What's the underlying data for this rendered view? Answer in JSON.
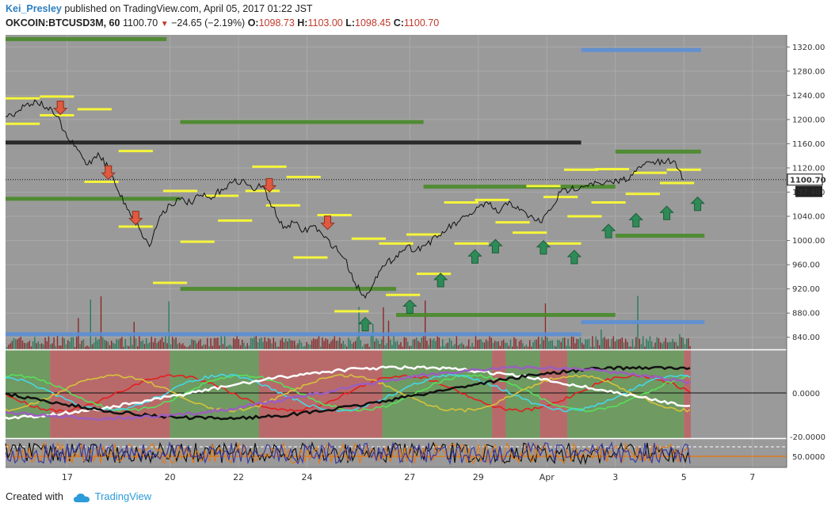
{
  "header": {
    "author": "Kei_Presley",
    "published_text": "published on TradingView.com, April 05, 2017 01:22 JST",
    "symbol": "OKCOIN:BTCUSD3M, 60",
    "last": "1100.70",
    "change": "−24.65 (−2.19%)",
    "o_label": "O:",
    "o_val": "1098.73",
    "h_label": "H:",
    "h_val": "1103.00",
    "l_label": "L:",
    "l_val": "1098.45",
    "c_label": "C:",
    "c_val": "1100.70"
  },
  "footer": {
    "created_with": "Created with",
    "brand": "TradingView"
  },
  "colors": {
    "pane_bg": "#9a9a9a",
    "price_line": "#111111",
    "yellow": "#f5f53a",
    "green_level": "#4a8a2a",
    "blue_level": "#5b8fd6",
    "black_level": "#2a2a2a",
    "up_arrow": "#2e8b57",
    "down_arrow": "#e05a40"
  },
  "chart_data": {
    "type": "line",
    "title": "",
    "price_axis": {
      "ticks": [
        840,
        880,
        920,
        960,
        1000,
        1040,
        1080,
        1120,
        1160,
        1200,
        1240,
        1280,
        1320
      ],
      "labels": [
        "840.00",
        "880.00",
        "920.00",
        "960.00",
        "1000.00",
        "1040.00",
        "1080.00",
        "1120.00",
        "1160.00",
        "1200.00",
        "1240.00",
        "1280.00",
        "1320.00"
      ],
      "range": [
        820,
        1340
      ]
    },
    "current_price": {
      "value": 1100.7,
      "label": "1100.70",
      "countdown": "37:40"
    },
    "x_axis": {
      "labels": [
        "17",
        "20",
        "22",
        "24",
        "27",
        "29",
        "Apr",
        "3",
        "5",
        "7"
      ],
      "positions": [
        17,
        20,
        22,
        24,
        27,
        29,
        31,
        33,
        35,
        37
      ],
      "range": [
        15.2,
        38
      ]
    },
    "price_series": {
      "x": [
        15.2,
        15.5,
        15.8,
        16.1,
        16.4,
        16.7,
        17.0,
        17.3,
        17.6,
        17.9,
        18.2,
        18.5,
        18.8,
        19.1,
        19.4,
        19.7,
        20.0,
        20.3,
        20.6,
        20.9,
        21.2,
        21.5,
        21.8,
        22.1,
        22.4,
        22.7,
        23.0,
        23.3,
        23.6,
        23.9,
        24.2,
        24.5,
        24.8,
        25.1,
        25.4,
        25.7,
        26.0,
        26.3,
        26.6,
        26.9,
        27.2,
        27.5,
        27.8,
        28.1,
        28.4,
        28.7,
        29.0,
        29.3,
        29.6,
        29.9,
        30.2,
        30.5,
        30.8,
        31.1,
        31.4,
        31.7,
        32.0,
        32.3,
        32.6,
        32.9,
        33.2,
        33.5,
        33.8,
        34.1,
        34.4,
        34.7,
        35.0
      ],
      "y": [
        1205,
        1212,
        1225,
        1230,
        1220,
        1205,
        1170,
        1150,
        1125,
        1145,
        1120,
        1080,
        1050,
        1020,
        990,
        1040,
        1060,
        1068,
        1062,
        1075,
        1068,
        1085,
        1095,
        1100,
        1085,
        1090,
        1055,
        1020,
        1030,
        1015,
        1025,
        1005,
        990,
        970,
        930,
        905,
        940,
        960,
        975,
        990,
        985,
        995,
        1005,
        1020,
        1030,
        1040,
        1055,
        1060,
        1045,
        1065,
        1050,
        1040,
        1030,
        1050,
        1080,
        1085,
        1090,
        1095,
        1092,
        1096,
        1100,
        1108,
        1125,
        1130,
        1128,
        1132,
        1100.7
      ]
    },
    "yellow_levels": [
      {
        "x": [
          15.2,
          16.2
        ],
        "y": 1235
      },
      {
        "x": [
          15.2,
          16.2
        ],
        "y": 1193
      },
      {
        "x": [
          16.2,
          17.2
        ],
        "y": 1238
      },
      {
        "x": [
          16.2,
          17.2
        ],
        "y": 1207
      },
      {
        "x": [
          17.3,
          18.3
        ],
        "y": 1217
      },
      {
        "x": [
          17.5,
          18.5
        ],
        "y": 1097
      },
      {
        "x": [
          18.5,
          19.5
        ],
        "y": 1148
      },
      {
        "x": [
          18.5,
          19.5
        ],
        "y": 1023
      },
      {
        "x": [
          19.5,
          20.5
        ],
        "y": 930
      },
      {
        "x": [
          19.8,
          20.8
        ],
        "y": 1082
      },
      {
        "x": [
          20.3,
          21.3
        ],
        "y": 998
      },
      {
        "x": [
          21.0,
          22.0
        ],
        "y": 1074
      },
      {
        "x": [
          21.4,
          22.4
        ],
        "y": 1033
      },
      {
        "x": [
          22.2,
          23.2
        ],
        "y": 1082
      },
      {
        "x": [
          22.4,
          23.4
        ],
        "y": 1122
      },
      {
        "x": [
          22.8,
          23.8
        ],
        "y": 1058
      },
      {
        "x": [
          23.4,
          24.4
        ],
        "y": 1105
      },
      {
        "x": [
          23.6,
          24.6
        ],
        "y": 972
      },
      {
        "x": [
          24.3,
          25.3
        ],
        "y": 1042
      },
      {
        "x": [
          24.8,
          25.8
        ],
        "y": 883
      },
      {
        "x": [
          25.3,
          26.3
        ],
        "y": 1003
      },
      {
        "x": [
          26.1,
          27.1
        ],
        "y": 995
      },
      {
        "x": [
          26.3,
          27.3
        ],
        "y": 910
      },
      {
        "x": [
          26.9,
          27.9
        ],
        "y": 1010
      },
      {
        "x": [
          27.2,
          28.2
        ],
        "y": 945
      },
      {
        "x": [
          28.0,
          29.0
        ],
        "y": 1063
      },
      {
        "x": [
          28.3,
          29.3
        ],
        "y": 995
      },
      {
        "x": [
          28.9,
          29.9
        ],
        "y": 1067
      },
      {
        "x": [
          29.5,
          30.5
        ],
        "y": 1030
      },
      {
        "x": [
          30.0,
          31.0
        ],
        "y": 1013
      },
      {
        "x": [
          30.4,
          31.4
        ],
        "y": 1090
      },
      {
        "x": [
          30.9,
          31.9
        ],
        "y": 1072
      },
      {
        "x": [
          31.0,
          32.0
        ],
        "y": 995
      },
      {
        "x": [
          31.5,
          32.5
        ],
        "y": 1117
      },
      {
        "x": [
          31.6,
          32.6
        ],
        "y": 1040
      },
      {
        "x": [
          32.3,
          33.3
        ],
        "y": 1063
      },
      {
        "x": [
          32.4,
          33.4
        ],
        "y": 1118
      },
      {
        "x": [
          33.3,
          34.3
        ],
        "y": 1077
      },
      {
        "x": [
          33.5,
          34.5
        ],
        "y": 1112
      },
      {
        "x": [
          34.3,
          35.3
        ],
        "y": 1095
      },
      {
        "x": [
          34.5,
          35.5
        ],
        "y": 1117
      }
    ],
    "green_levels": [
      {
        "x": [
          15.2,
          19.9
        ],
        "y": 1333
      },
      {
        "x": [
          20.3,
          27.4
        ],
        "y": 1196
      },
      {
        "x": [
          15.2,
          20.3
        ],
        "y": 1069
      },
      {
        "x": [
          20.3,
          26.6
        ],
        "y": 920
      },
      {
        "x": [
          26.6,
          33.0
        ],
        "y": 877
      },
      {
        "x": [
          27.4,
          33.0
        ],
        "y": 1089
      },
      {
        "x": [
          33.0,
          34.8
        ],
        "y": 1147
      },
      {
        "x": [
          34.8,
          35.5
        ],
        "y": 1147
      },
      {
        "x": [
          33.0,
          35.6
        ],
        "y": 1008
      }
    ],
    "blue_levels": [
      {
        "x": [
          15.2,
          32.0
        ],
        "y": 845
      },
      {
        "x": [
          32.0,
          35.6
        ],
        "y": 865
      },
      {
        "x": [
          32.0,
          35.5
        ],
        "y": 1315
      }
    ],
    "black_levels": [
      {
        "x": [
          15.2,
          32.0
        ],
        "y": 1162
      }
    ],
    "down_arrows": [
      {
        "x": 16.8,
        "y": 1220
      },
      {
        "x": 18.2,
        "y": 1113
      },
      {
        "x": 19.0,
        "y": 1038
      },
      {
        "x": 22.9,
        "y": 1092
      },
      {
        "x": 24.6,
        "y": 1030
      }
    ],
    "up_arrows": [
      {
        "x": 25.7,
        "y": 861
      },
      {
        "x": 27.0,
        "y": 890
      },
      {
        "x": 27.9,
        "y": 934
      },
      {
        "x": 28.9,
        "y": 973
      },
      {
        "x": 29.5,
        "y": 990
      },
      {
        "x": 30.9,
        "y": 988
      },
      {
        "x": 31.8,
        "y": 972
      },
      {
        "x": 32.8,
        "y": 1015
      },
      {
        "x": 33.6,
        "y": 1033
      },
      {
        "x": 34.5,
        "y": 1045
      },
      {
        "x": 35.4,
        "y": 1060
      }
    ],
    "oscillator": {
      "axis_labels": [
        "0.0000",
        "-20.0000"
      ],
      "zones": [
        {
          "x": [
            15.2,
            16.5
          ],
          "state": "green"
        },
        {
          "x": [
            16.5,
            20.0
          ],
          "state": "red"
        },
        {
          "x": [
            20.0,
            22.6
          ],
          "state": "green"
        },
        {
          "x": [
            22.6,
            26.2
          ],
          "state": "red"
        },
        {
          "x": [
            26.2,
            29.4
          ],
          "state": "green"
        },
        {
          "x": [
            29.4,
            29.8
          ],
          "state": "red"
        },
        {
          "x": [
            29.8,
            30.8
          ],
          "state": "green"
        },
        {
          "x": [
            30.8,
            31.6
          ],
          "state": "red"
        },
        {
          "x": [
            31.6,
            35.0
          ],
          "state": "green"
        },
        {
          "x": [
            35.0,
            35.2
          ],
          "state": "red"
        }
      ]
    },
    "rsi": {
      "axis_label": "50.0000"
    }
  }
}
